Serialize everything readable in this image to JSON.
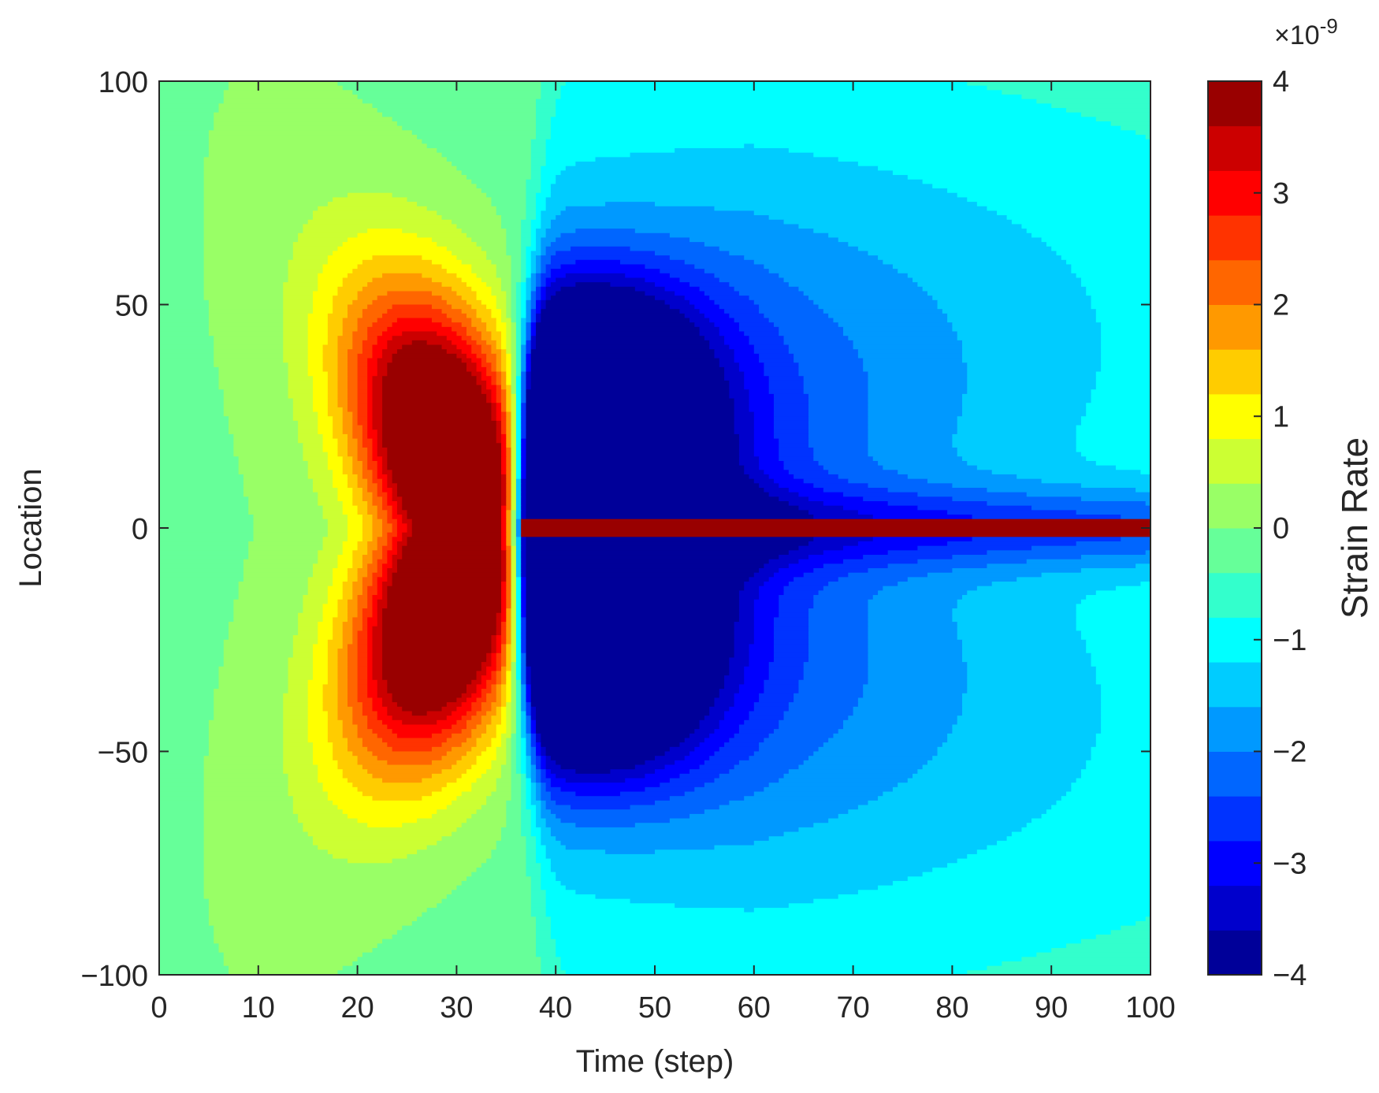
{
  "chart_data": {
    "type": "heatmap",
    "subtype": "filled-contour",
    "xlabel": "Time (step)",
    "ylabel": "Location",
    "xlim": [
      0,
      100
    ],
    "ylim": [
      -100,
      100
    ],
    "x_ticks": [
      0,
      10,
      20,
      30,
      40,
      50,
      60,
      70,
      80,
      90,
      100
    ],
    "y_ticks": [
      100,
      50,
      0,
      -50,
      -100
    ],
    "y_tick_labels": [
      "100",
      "50",
      "0",
      "−50",
      "−100"
    ],
    "colormap": "jet",
    "colorbar": {
      "label": "Strain Rate",
      "multiplier": "×10",
      "exponent": "-9",
      "range": [
        -4,
        4
      ],
      "ticks": [
        4,
        3,
        2,
        1,
        0,
        -1,
        -2,
        -3,
        -4
      ],
      "tick_labels": [
        "4",
        "3",
        "2",
        "1",
        "0",
        "−1",
        "−2",
        "−3",
        "−4"
      ]
    },
    "contour_levels_e9": [
      -4,
      -3.6,
      -3.2,
      -2.8,
      -2.4,
      -2.0,
      -1.6,
      -1.2,
      -0.8,
      -0.4,
      0,
      0.4,
      0.8,
      1.2,
      1.6,
      2.0,
      2.4,
      2.8,
      3.2,
      3.6,
      4
    ],
    "features": [
      {
        "name": "positive lobe",
        "x_range": [
          15,
          37
        ],
        "y_range": [
          -58,
          58
        ],
        "peak_e9": 4
      },
      {
        "name": "negative lobe",
        "x_range": [
          37,
          52
        ],
        "y_range": [
          -60,
          60
        ],
        "min_e9": -4
      },
      {
        "name": "positive ridge",
        "x_range": [
          37,
          100
        ],
        "y_center": 0,
        "value_e9": 4
      }
    ],
    "grid": false,
    "legend": "colorbar-right"
  }
}
